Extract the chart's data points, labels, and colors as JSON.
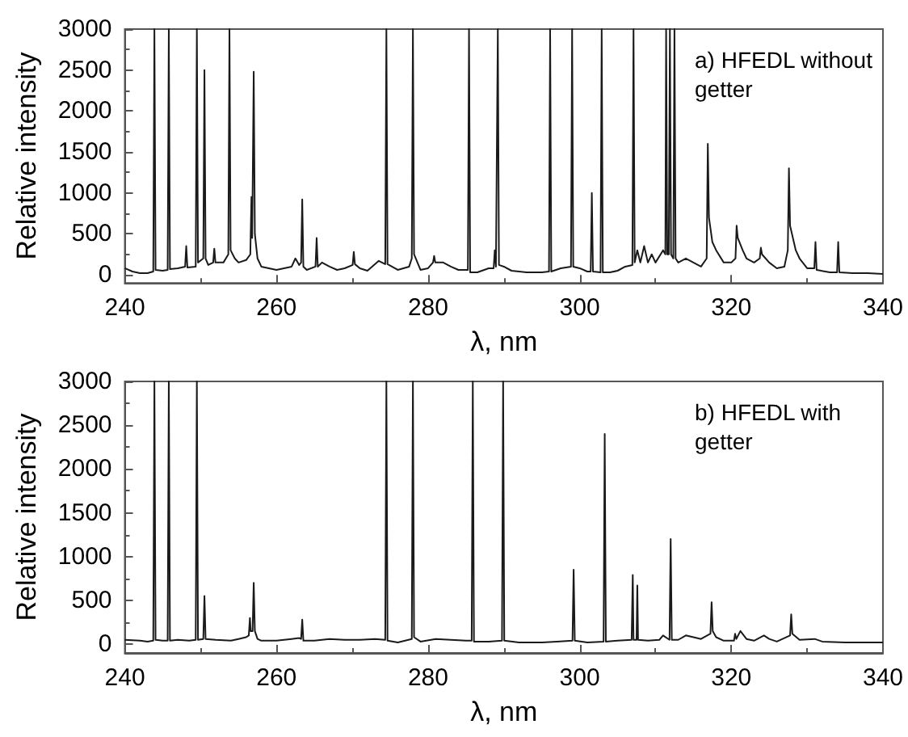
{
  "chart_data": [
    {
      "type": "line",
      "xlabel": "λ, nm",
      "ylabel": "Relative intensity",
      "annotations": [
        "a) HFEDL without getter"
      ],
      "color": "#1a1a1a",
      "grid": false,
      "xlim": [
        240,
        340
      ],
      "xticks": [
        240,
        260,
        280,
        300,
        320,
        340
      ],
      "ylim": [
        -100,
        3000
      ],
      "yticks": [
        0,
        500,
        1000,
        1500,
        2000,
        2500,
        3000
      ],
      "x": [
        240,
        241,
        242,
        243,
        243.75,
        243.9,
        244.05,
        245,
        245.65,
        245.8,
        245.95,
        247,
        247.95,
        248.1,
        248.25,
        249.35,
        249.5,
        249.65,
        250.35,
        250.5,
        250.65,
        251,
        251.65,
        251.8,
        251.95,
        253,
        253.65,
        253.8,
        253.95,
        254.5,
        255,
        256,
        256.55,
        256.7,
        256.8,
        257,
        257.15,
        257.5,
        258,
        259,
        260,
        261,
        262,
        262.5,
        263,
        263.25,
        263.4,
        263.55,
        264,
        265.15,
        265.3,
        265.45,
        266,
        267,
        268,
        269,
        270.05,
        270.2,
        270.35,
        271,
        272,
        273.5,
        274.35,
        274.5,
        274.65,
        276,
        277.5,
        277.85,
        278,
        278.15,
        278.6,
        279,
        280,
        280.65,
        280.8,
        280.95,
        282,
        283,
        284,
        285.25,
        285.4,
        285.55,
        286.5,
        288,
        288.65,
        288.8,
        288.95,
        289.05,
        289.2,
        289.35,
        290,
        291,
        293,
        295,
        295.95,
        296.1,
        296.25,
        297.5,
        298.85,
        299,
        299.15,
        300,
        301,
        301.45,
        301.6,
        301.75,
        302.75,
        302.9,
        303.05,
        304,
        305,
        306,
        306.95,
        307.1,
        307.25,
        307.6,
        308,
        308.5,
        309,
        309.5,
        310,
        311,
        311.3,
        311.4,
        311.55,
        311.75,
        311.9,
        312.05,
        312.35,
        312.5,
        312.65,
        313,
        314,
        315,
        316,
        316.75,
        316.9,
        317.05,
        317.5,
        318,
        319,
        320,
        320.55,
        320.7,
        320.85,
        321.5,
        322,
        323,
        323.75,
        323.9,
        324.05,
        325,
        326,
        327,
        327.45,
        327.6,
        327.75,
        328.5,
        329,
        330,
        330.95,
        331.1,
        331.25,
        333,
        333.95,
        334.1,
        334.25,
        336,
        338,
        340
      ],
      "values": [
        80,
        40,
        20,
        20,
        40,
        3000,
        60,
        50,
        60,
        3000,
        70,
        80,
        100,
        350,
        90,
        100,
        3000,
        150,
        200,
        2500,
        200,
        120,
        150,
        320,
        150,
        150,
        250,
        3000,
        300,
        200,
        150,
        180,
        250,
        950,
        450,
        2480,
        500,
        200,
        100,
        80,
        60,
        80,
        100,
        200,
        120,
        150,
        920,
        100,
        60,
        100,
        450,
        100,
        150,
        100,
        60,
        80,
        120,
        280,
        130,
        80,
        50,
        170,
        130,
        3000,
        130,
        60,
        100,
        200,
        3000,
        250,
        150,
        60,
        80,
        150,
        230,
        150,
        150,
        100,
        60,
        60,
        3000,
        30,
        30,
        80,
        80,
        300,
        100,
        100,
        3000,
        120,
        100,
        50,
        30,
        30,
        40,
        3000,
        40,
        80,
        100,
        3000,
        100,
        80,
        40,
        40,
        1000,
        40,
        30,
        3000,
        30,
        30,
        50,
        100,
        120,
        3000,
        150,
        300,
        150,
        350,
        150,
        250,
        150,
        300,
        250,
        3000,
        250,
        250,
        3000,
        250,
        200,
        3000,
        200,
        150,
        200,
        150,
        100,
        200,
        1600,
        700,
        400,
        300,
        150,
        150,
        200,
        600,
        450,
        300,
        200,
        150,
        200,
        330,
        250,
        150,
        80,
        100,
        300,
        1300,
        600,
        300,
        200,
        80,
        80,
        400,
        60,
        30,
        30,
        400,
        30,
        20,
        20,
        10
      ]
    },
    {
      "type": "line",
      "xlabel": "λ, nm",
      "ylabel": "Relative intensity",
      "annotations": [
        "b) HFEDL with getter"
      ],
      "color": "#1a1a1a",
      "grid": false,
      "xlim": [
        240,
        340
      ],
      "xticks": [
        240,
        260,
        280,
        300,
        320,
        340
      ],
      "ylim": [
        -100,
        3000
      ],
      "yticks": [
        0,
        500,
        1000,
        1500,
        2000,
        2500,
        3000
      ],
      "x": [
        240,
        242,
        243,
        243.75,
        243.9,
        244.05,
        245,
        245.65,
        245.8,
        245.95,
        247,
        248.5,
        249.35,
        249.5,
        249.65,
        250.35,
        250.5,
        250.65,
        252,
        254,
        255,
        256,
        256.35,
        256.5,
        256.6,
        256.85,
        257,
        257.15,
        257.5,
        258,
        260,
        262,
        263,
        263.25,
        263.4,
        263.55,
        265,
        267,
        269,
        271,
        273,
        274.35,
        274.5,
        274.65,
        276,
        277.85,
        278,
        278.15,
        279,
        281,
        283,
        285,
        285.75,
        285.9,
        286.05,
        288,
        289.75,
        289.9,
        290.05,
        292,
        295,
        297,
        299.05,
        299.2,
        299.35,
        301,
        303.15,
        303.3,
        303.45,
        305,
        306.85,
        307,
        307.1,
        307.5,
        307.6,
        307.7,
        309,
        310.5,
        311,
        311.85,
        312,
        312.15,
        313,
        314,
        315,
        316,
        317.25,
        317.4,
        317.55,
        318,
        319,
        320.35,
        320.5,
        320.65,
        321.2,
        322,
        323,
        324.3,
        325,
        326,
        327.75,
        327.9,
        328.05,
        329,
        331,
        332,
        335,
        338,
        340
      ],
      "values": [
        50,
        40,
        30,
        40,
        3000,
        50,
        40,
        40,
        3000,
        40,
        50,
        40,
        50,
        3000,
        50,
        60,
        550,
        60,
        50,
        40,
        60,
        80,
        100,
        300,
        150,
        150,
        700,
        150,
        60,
        40,
        40,
        60,
        70,
        60,
        280,
        40,
        40,
        60,
        50,
        50,
        60,
        50,
        3000,
        40,
        20,
        60,
        3000,
        80,
        30,
        60,
        50,
        40,
        40,
        3000,
        30,
        30,
        40,
        3000,
        40,
        20,
        20,
        30,
        40,
        850,
        40,
        20,
        30,
        2400,
        30,
        40,
        50,
        790,
        50,
        50,
        670,
        50,
        40,
        50,
        100,
        50,
        1200,
        50,
        50,
        100,
        80,
        60,
        120,
        480,
        150,
        80,
        40,
        40,
        120,
        60,
        150,
        60,
        40,
        100,
        60,
        30,
        100,
        340,
        120,
        50,
        60,
        30,
        20,
        20,
        20
      ]
    }
  ]
}
